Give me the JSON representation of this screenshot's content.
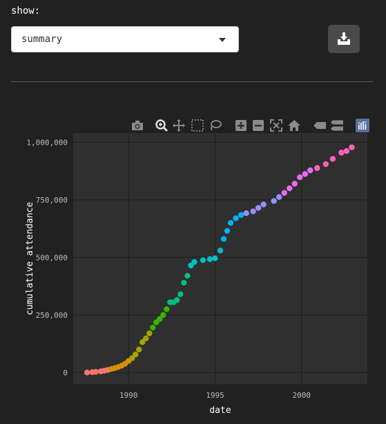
{
  "controls": {
    "show_label": "show:",
    "select_value": "summary",
    "download_icon": "download-icon"
  },
  "modebar": {
    "buttons": [
      "camera-icon",
      "zoom-icon",
      "pan-icon",
      "box-select-icon",
      "lasso-icon",
      "zoom-in-icon",
      "zoom-out-icon",
      "autoscale-icon",
      "reset-axes-icon",
      "hover-closest-icon",
      "hover-compare-icon",
      "plotly-logo-icon"
    ]
  },
  "chart_data": {
    "type": "scatter",
    "xlabel": "date",
    "ylabel": "cumulative attendance",
    "xlim": [
      1986.8,
      2003.8
    ],
    "ylim": [
      -50000,
      1040000
    ],
    "x_ticks": [
      1990,
      1995,
      2000
    ],
    "x_tick_labels": [
      "1990",
      "1995",
      "2000"
    ],
    "y_ticks": [
      0,
      250000,
      500000,
      750000,
      1000000
    ],
    "y_tick_labels": [
      "0",
      "250,000",
      "500,000",
      "750,000",
      "1,000,000"
    ],
    "grid": true,
    "legend": "none",
    "colors": {
      "background": "#212121",
      "plot_background": "#2f2f2f",
      "grid": "#1e1e1e",
      "modebar_icon": "#8a8a8a",
      "plotly_logo": "#5b6e9e",
      "color_scale": [
        "#f8766d",
        "#d89000",
        "#a3a500",
        "#39b600",
        "#00bf7d",
        "#00bfc4",
        "#00b0f6",
        "#9590ff",
        "#e76bf3",
        "#ff62bc"
      ]
    },
    "points": [
      [
        1987.6,
        0
      ],
      [
        1987.9,
        1500
      ],
      [
        1988.1,
        3000
      ],
      [
        1988.4,
        5000
      ],
      [
        1988.6,
        8000
      ],
      [
        1988.8,
        11000
      ],
      [
        1989.0,
        15000
      ],
      [
        1989.2,
        19000
      ],
      [
        1989.4,
        24000
      ],
      [
        1989.6,
        30000
      ],
      [
        1989.8,
        38000
      ],
      [
        1990.0,
        50000
      ],
      [
        1990.2,
        62000
      ],
      [
        1990.4,
        78000
      ],
      [
        1990.6,
        100000
      ],
      [
        1990.8,
        132000
      ],
      [
        1991.0,
        148000
      ],
      [
        1991.2,
        170000
      ],
      [
        1991.4,
        195000
      ],
      [
        1991.6,
        218000
      ],
      [
        1991.8,
        232000
      ],
      [
        1992.0,
        250000
      ],
      [
        1992.2,
        275000
      ],
      [
        1992.4,
        305000
      ],
      [
        1992.6,
        305000
      ],
      [
        1992.8,
        315000
      ],
      [
        1993.0,
        340000
      ],
      [
        1993.2,
        390000
      ],
      [
        1993.4,
        420000
      ],
      [
        1993.6,
        465000
      ],
      [
        1993.8,
        480000
      ],
      [
        1994.3,
        488000
      ],
      [
        1994.7,
        492000
      ],
      [
        1995.0,
        496000
      ],
      [
        1995.3,
        530000
      ],
      [
        1995.5,
        580000
      ],
      [
        1995.7,
        615000
      ],
      [
        1995.9,
        650000
      ],
      [
        1996.2,
        670000
      ],
      [
        1996.5,
        684000
      ],
      [
        1996.8,
        692000
      ],
      [
        1997.2,
        700000
      ],
      [
        1997.5,
        715000
      ],
      [
        1997.8,
        730000
      ],
      [
        1998.4,
        745000
      ],
      [
        1998.7,
        762000
      ],
      [
        1999.0,
        780000
      ],
      [
        1999.3,
        800000
      ],
      [
        1999.6,
        820000
      ],
      [
        1999.9,
        848000
      ],
      [
        2000.2,
        862000
      ],
      [
        2000.5,
        878000
      ],
      [
        2000.9,
        888000
      ],
      [
        2001.4,
        905000
      ],
      [
        2001.8,
        928000
      ],
      [
        2002.3,
        955000
      ],
      [
        2002.6,
        962000
      ],
      [
        2002.9,
        978000
      ]
    ]
  }
}
